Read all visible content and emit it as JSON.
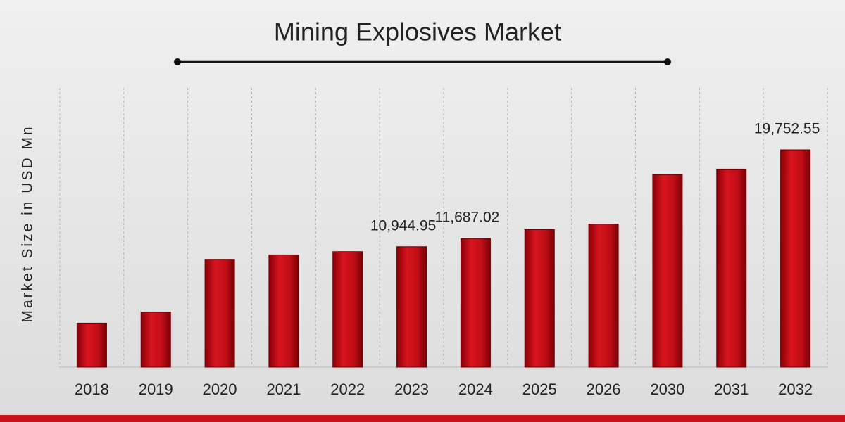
{
  "chart_data": {
    "type": "bar",
    "title": "Mining Explosives Market",
    "y_label": "Market Size in USD Mn",
    "categories": [
      "2018",
      "2019",
      "2020",
      "2021",
      "2022",
      "2023",
      "2024",
      "2025",
      "2026",
      "2030",
      "2031",
      "2032"
    ],
    "values": [
      4000,
      5000,
      9800,
      10200,
      10500,
      10944.95,
      11687.02,
      12500,
      13000,
      17500,
      18000,
      19752.55
    ],
    "value_labels": [
      null,
      null,
      null,
      null,
      null,
      "10,944.95",
      "11,687.02",
      null,
      null,
      null,
      null,
      "19,752.55"
    ],
    "color": "#c8101a"
  }
}
